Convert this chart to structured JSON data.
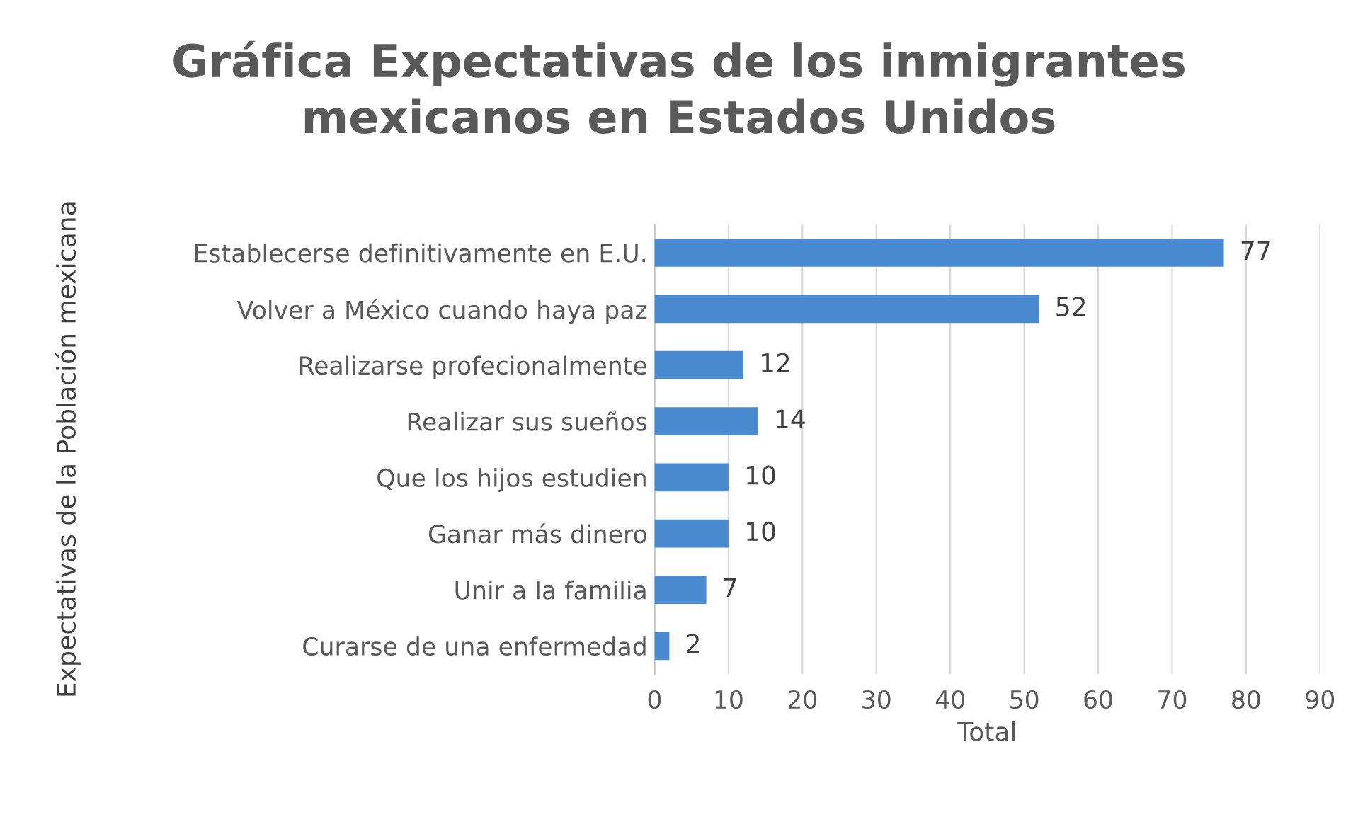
{
  "chart_data": {
    "type": "bar",
    "orientation": "horizontal",
    "title": "Gráfica Expectativas de los inmigrantes\nmexicanos en Estados Unidos",
    "xlabel": "Total",
    "ylabel": "Expectativas de la Población mexicana",
    "categories": [
      "Establecerse definitivamente en E.U.",
      "Volver a México cuando haya paz",
      "Realizarse profecionalmente",
      "Realizar sus sueños",
      "Que los hijos estudien",
      "Ganar más dinero",
      "Unir a la familia",
      "Curarse de una enfermedad"
    ],
    "values": [
      77,
      52,
      12,
      14,
      10,
      10,
      7,
      2
    ],
    "color": "#4a8ad0",
    "xlim": [
      0,
      90
    ],
    "xticks": [
      0,
      10,
      20,
      30,
      40,
      50,
      60,
      70,
      80,
      90
    ],
    "grid": "x",
    "data_labels": true
  }
}
